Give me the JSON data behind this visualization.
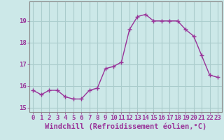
{
  "x": [
    0,
    1,
    2,
    3,
    4,
    5,
    6,
    7,
    8,
    9,
    10,
    11,
    12,
    13,
    14,
    15,
    16,
    17,
    18,
    19,
    20,
    21,
    22,
    23
  ],
  "y": [
    15.8,
    15.6,
    15.8,
    15.8,
    15.5,
    15.4,
    15.4,
    15.8,
    15.9,
    16.8,
    16.9,
    17.1,
    18.6,
    19.2,
    19.3,
    19.0,
    19.0,
    19.0,
    19.0,
    18.6,
    18.3,
    17.4,
    16.5,
    16.4
  ],
  "line_color": "#993399",
  "marker": "+",
  "marker_size": 4,
  "marker_lw": 1.0,
  "bg_color": "#cce8e8",
  "grid_color": "#aacccc",
  "xlabel": "Windchill (Refroidissement éolien,°C)",
  "xlabel_fontsize": 7.5,
  "ylim": [
    14.8,
    19.9
  ],
  "xlim": [
    -0.5,
    23.5
  ],
  "yticks": [
    15,
    16,
    17,
    18,
    19
  ],
  "xticks": [
    0,
    1,
    2,
    3,
    4,
    5,
    6,
    7,
    8,
    9,
    10,
    11,
    12,
    13,
    14,
    15,
    16,
    17,
    18,
    19,
    20,
    21,
    22,
    23
  ],
  "tick_fontsize": 6.5,
  "tick_color": "#993399",
  "label_color": "#993399",
  "spine_color": "#888888",
  "linewidth": 1.0
}
